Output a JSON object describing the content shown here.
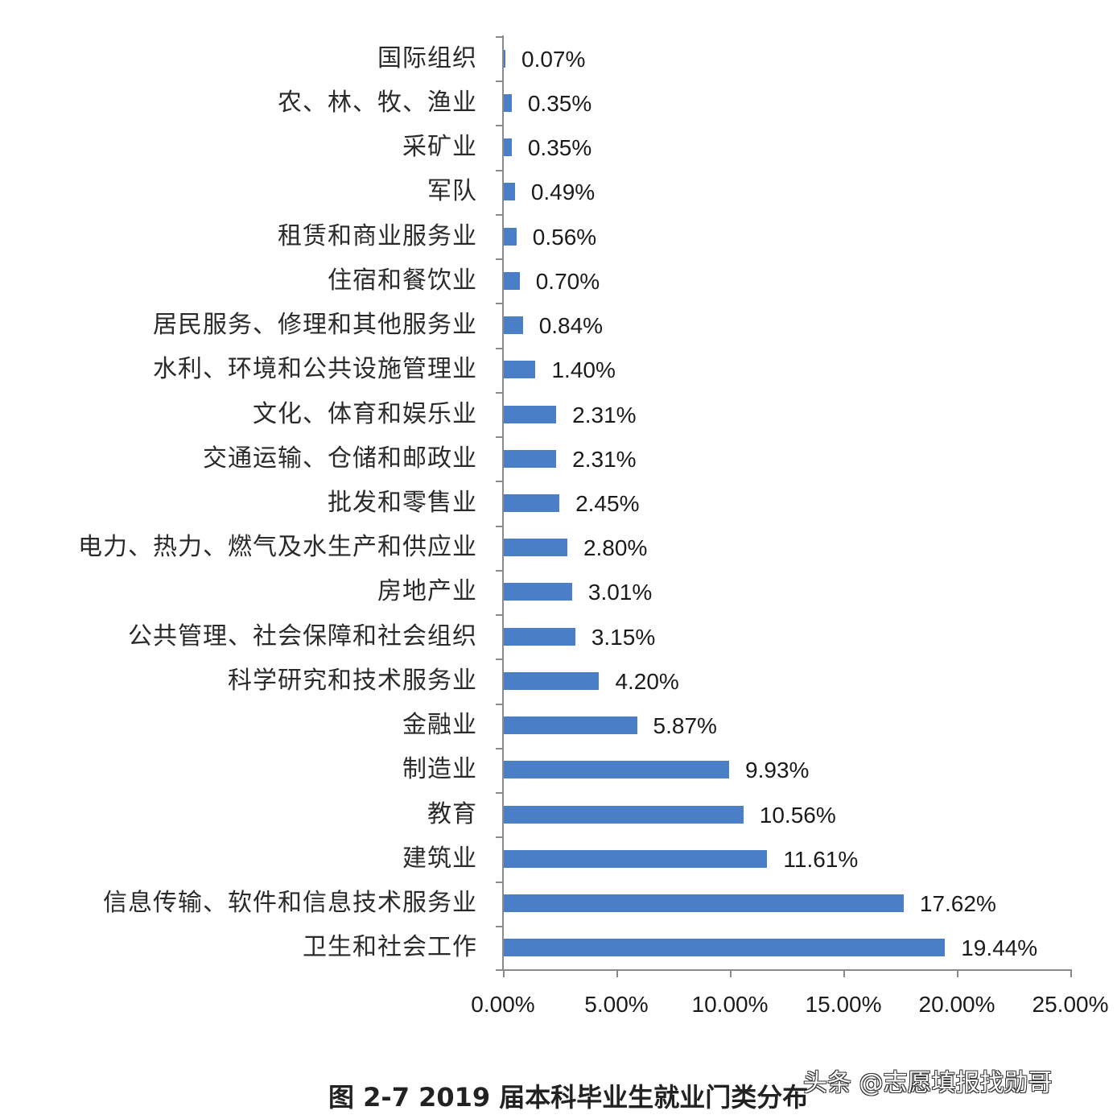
{
  "chart_data": {
    "type": "bar",
    "orientation": "horizontal",
    "title": "图 2-7 2019 届本科毕业生就业门类分布",
    "xlabel": "",
    "ylabel": "",
    "xlim": [
      0,
      25
    ],
    "x_ticks": [
      "0.00%",
      "5.00%",
      "10.00%",
      "15.00%",
      "20.00%",
      "25.00%"
    ],
    "grid": false,
    "legend": null,
    "bar_color": "#4a7ec6",
    "categories": [
      "国际组织",
      "农、林、牧、渔业",
      "采矿业",
      "军队",
      "租赁和商业服务业",
      "住宿和餐饮业",
      "居民服务、修理和其他服务业",
      "水利、环境和公共设施管理业",
      "文化、体育和娱乐业",
      "交通运输、仓储和邮政业",
      "批发和零售业",
      "电力、热力、燃气及水生产和供应业",
      "房地产业",
      "公共管理、社会保障和社会组织",
      "科学研究和技术服务业",
      "金融业",
      "制造业",
      "教育",
      "建筑业",
      "信息传输、软件和信息技术服务业",
      "卫生和社会工作"
    ],
    "values": [
      0.07,
      0.35,
      0.35,
      0.49,
      0.56,
      0.7,
      0.84,
      1.4,
      2.31,
      2.31,
      2.45,
      2.8,
      3.01,
      3.15,
      4.2,
      5.87,
      9.93,
      10.56,
      11.61,
      17.62,
      19.44
    ],
    "value_labels": [
      "0.07%",
      "0.35%",
      "0.35%",
      "0.49%",
      "0.56%",
      "0.70%",
      "0.84%",
      "1.40%",
      "2.31%",
      "2.31%",
      "2.45%",
      "2.80%",
      "3.01%",
      "3.15%",
      "4.20%",
      "5.87%",
      "9.93%",
      "10.56%",
      "11.61%",
      "17.62%",
      "19.44%"
    ]
  },
  "caption": "图 2-7 2019 届本科毕业生就业门类分布",
  "watermark": "头条 @志愿填报找勋哥"
}
